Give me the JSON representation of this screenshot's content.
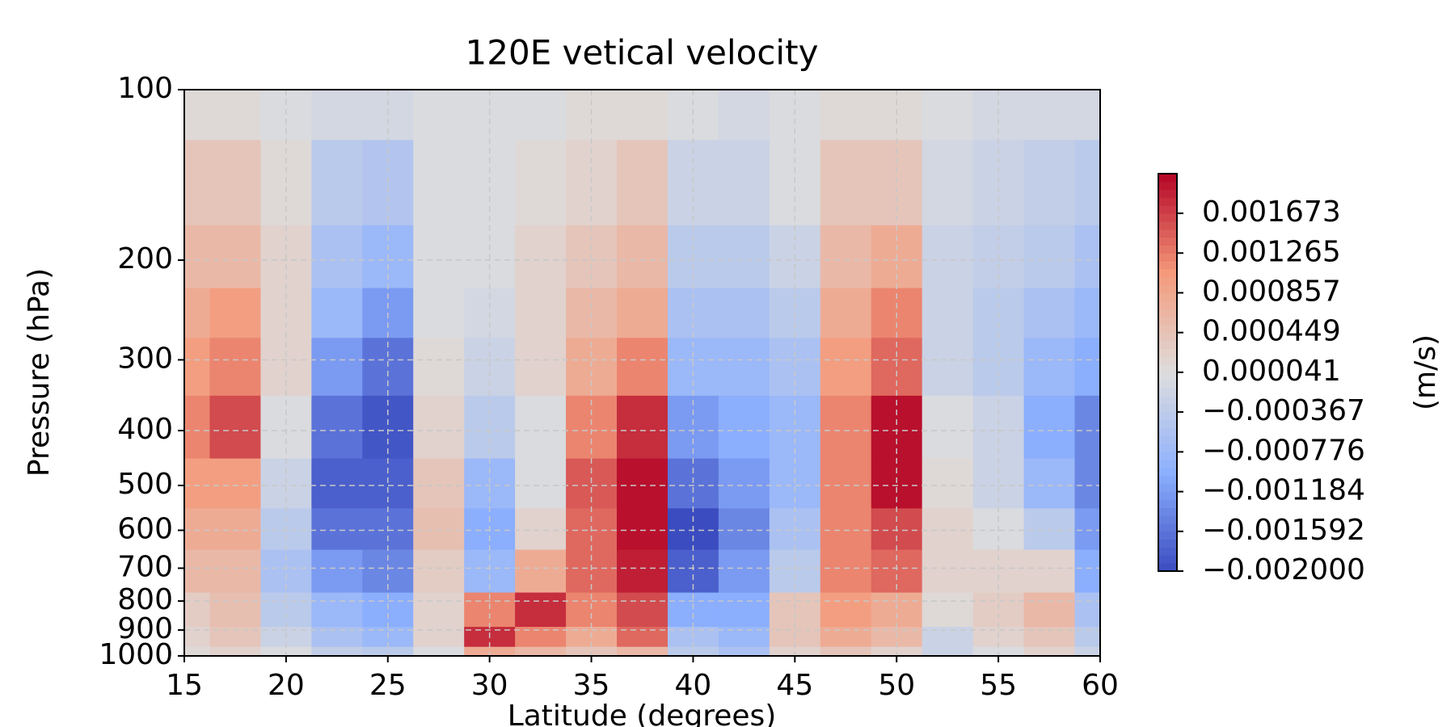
{
  "chart_data": {
    "type": "contour",
    "title": "120E vetical velocity",
    "x_label": "Latitude (degrees)",
    "y_label": "Pressure (hPa)",
    "colorbar_label": "(m/s)",
    "x": [
      15,
      17.5,
      20,
      22.5,
      25,
      27.5,
      30,
      32.5,
      35,
      37.5,
      40,
      42.5,
      45,
      47.5,
      50,
      52.5,
      55,
      57.5,
      60
    ],
    "levels": [
      1000,
      925,
      850,
      700,
      600,
      500,
      400,
      300,
      250,
      200,
      150,
      100
    ],
    "z": [
      [
        0.0001,
        0.0002,
        0,
        -0.0003,
        -0.0004,
        0,
        0.0008,
        0.0006,
        0.0004,
        0.0006,
        -0.0004,
        -0.0006,
        0.0002,
        0.0004,
        0.0002,
        -0.0002,
        0,
        0.0002,
        -0.0002
      ],
      [
        0.0002,
        0.0004,
        -0.0002,
        -0.0006,
        -0.0008,
        0.0002,
        0.0018,
        0.0012,
        0.0008,
        0.0014,
        -0.0006,
        -0.0008,
        0.0004,
        0.0008,
        0.0006,
        -0.0002,
        0.0002,
        0.0004,
        -0.0004
      ],
      [
        0.0003,
        0.0005,
        -0.0004,
        -0.0008,
        -0.001,
        0.0002,
        0.0012,
        0.0018,
        0.0012,
        0.0016,
        -0.001,
        -0.001,
        0.0004,
        0.001,
        0.0008,
        0.0001,
        0.0003,
        0.0006,
        -0.0006
      ],
      [
        0.0006,
        0.0006,
        -0.0006,
        -0.0012,
        -0.0014,
        0.0003,
        -0.0008,
        0.0008,
        0.0014,
        0.0019,
        -0.0018,
        -0.0012,
        -0.0004,
        0.0012,
        0.0014,
        0.0002,
        0.0002,
        0.0002,
        -0.001
      ],
      [
        0.0008,
        0.0008,
        -0.0004,
        -0.0016,
        -0.0016,
        0.0005,
        -0.001,
        0.0002,
        0.0014,
        0.002,
        -0.002,
        -0.0014,
        -0.0006,
        0.0012,
        0.0016,
        0.0002,
        0,
        -0.0004,
        -0.0012
      ],
      [
        0.001,
        0.001,
        -0.0002,
        -0.0018,
        -0.0018,
        0.0004,
        -0.0008,
        0,
        0.0015,
        0.002,
        -0.0016,
        -0.0012,
        -0.0008,
        0.0012,
        0.002,
        0.0001,
        -0.0002,
        -0.0008,
        -0.0014
      ],
      [
        0.0012,
        0.0016,
        0,
        -0.0016,
        -0.0019,
        0.0002,
        -0.0004,
        0,
        0.0012,
        0.0018,
        -0.0012,
        -0.001,
        -0.0008,
        0.0012,
        0.002,
        0,
        -0.0002,
        -0.001,
        -0.0014
      ],
      [
        0.001,
        0.0012,
        0.0002,
        -0.0012,
        -0.0016,
        0.0001,
        -0.0002,
        0.0002,
        0.0008,
        0.0012,
        -0.0008,
        -0.0008,
        -0.0006,
        0.001,
        0.0014,
        -0.0002,
        -0.0004,
        -0.0008,
        -0.001
      ],
      [
        0.0008,
        0.001,
        0.0002,
        -0.0008,
        -0.0012,
        0,
        -0.0001,
        0.0002,
        0.0006,
        0.0008,
        -0.0006,
        -0.0006,
        -0.0004,
        0.0008,
        0.0012,
        -0.0002,
        -0.0004,
        -0.0006,
        -0.0008
      ],
      [
        0.0006,
        0.0006,
        0.0002,
        -0.0006,
        -0.0008,
        0,
        0,
        0.0002,
        0.0004,
        0.0006,
        -0.0004,
        -0.0004,
        -0.0002,
        0.0006,
        0.0008,
        -0.0002,
        -0.0003,
        -0.0004,
        -0.0006
      ],
      [
        0.0004,
        0.0004,
        0.0001,
        -0.0004,
        -0.0005,
        0,
        0,
        0.0001,
        0.0002,
        0.0004,
        -0.0002,
        -0.0002,
        0,
        0.0004,
        0.0004,
        -0.0001,
        -0.0002,
        -0.0003,
        -0.0004
      ],
      [
        0.0001,
        0.0001,
        0,
        -0.0001,
        -0.0001,
        0,
        0,
        0,
        0.0001,
        0.0001,
        0,
        -0.0001,
        0,
        0.0001,
        0.0001,
        0,
        -0.0001,
        -0.0001,
        -0.0001
      ]
    ],
    "xlim": [
      15,
      60
    ],
    "xticks": [
      15,
      20,
      25,
      30,
      35,
      40,
      45,
      50,
      55,
      60
    ],
    "ylim": [
      1000,
      100
    ],
    "yscale": "log",
    "yticks": [
      100,
      200,
      300,
      400,
      500,
      600,
      700,
      800,
      900,
      1000
    ],
    "grid": true,
    "clim": [
      -0.002,
      0.00208
    ],
    "colormap": [
      "#3b4cc0",
      "#8db0fe",
      "#dddddd",
      "#f49a7b",
      "#b40426"
    ],
    "cticks": [
      {
        "value": 0.001673,
        "label": "0.001673"
      },
      {
        "value": 0.001265,
        "label": "0.001265"
      },
      {
        "value": 0.000857,
        "label": "0.000857"
      },
      {
        "value": 0.000449,
        "label": "0.000449"
      },
      {
        "value": 4.1e-05,
        "label": "0.000041"
      },
      {
        "value": -0.000367,
        "label": "−0.000367"
      },
      {
        "value": -0.000776,
        "label": "−0.000776"
      },
      {
        "value": -0.001184,
        "label": "−0.001184"
      },
      {
        "value": -0.001592,
        "label": "−0.001592"
      },
      {
        "value": -0.002,
        "label": "−0.002000"
      }
    ]
  }
}
